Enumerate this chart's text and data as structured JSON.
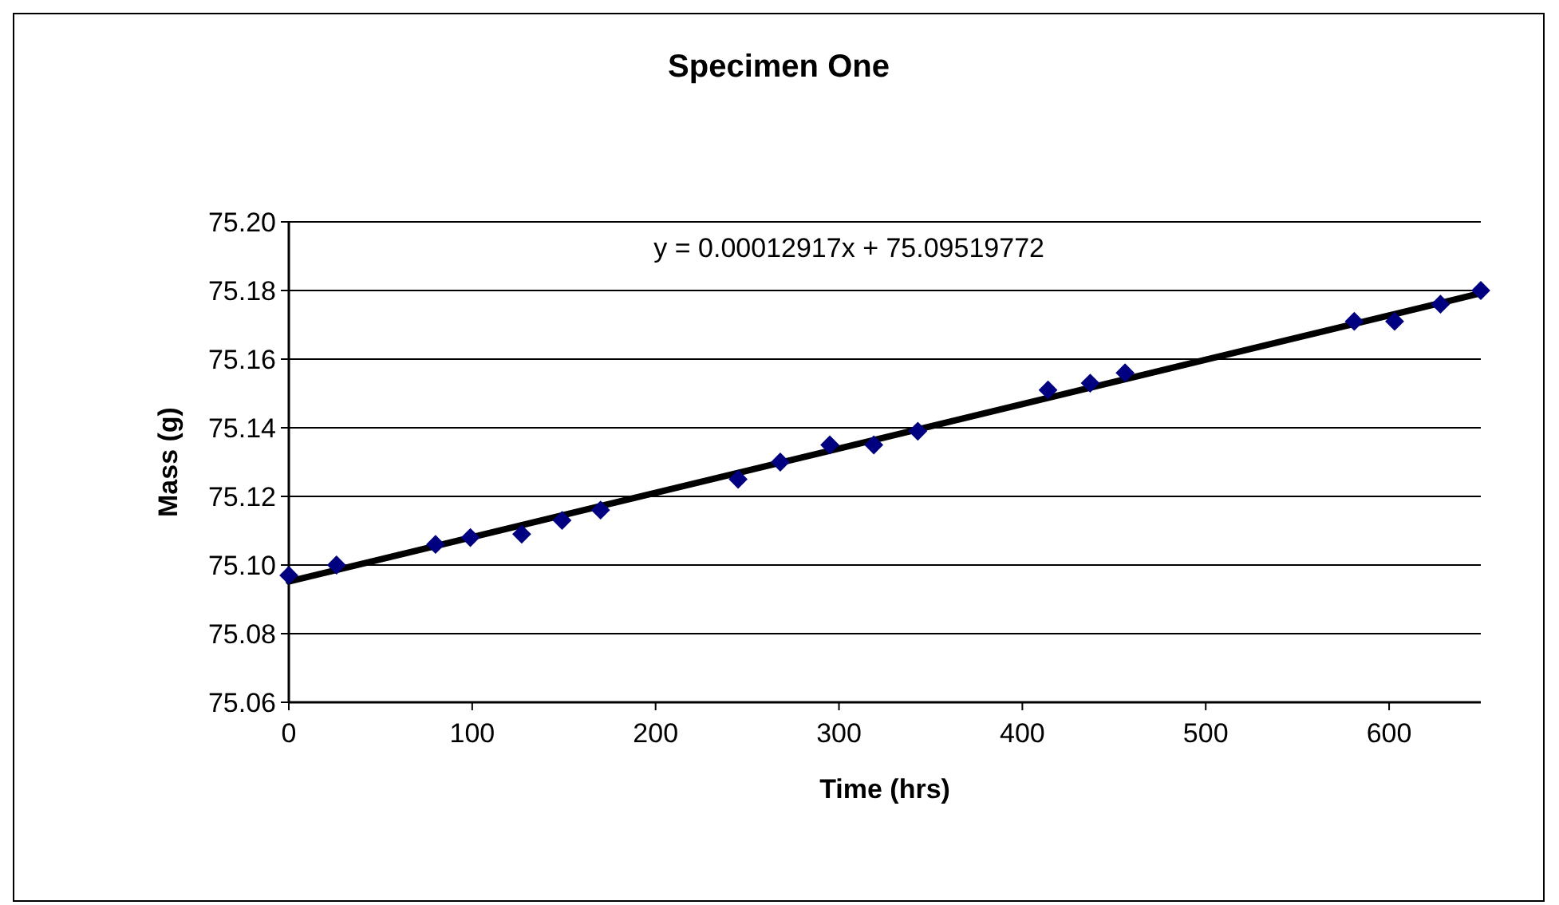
{
  "chart_data": {
    "type": "scatter",
    "title": "Specimen One",
    "xlabel": "Time (hrs)",
    "ylabel": "Mass (g)",
    "xlim": [
      0,
      650
    ],
    "xticks": [
      0,
      100,
      200,
      300,
      400,
      500,
      600
    ],
    "ylim": [
      75.06,
      75.2
    ],
    "yticks": [
      {
        "value": 75.06,
        "label": "75.06"
      },
      {
        "value": 75.08,
        "label": "75.08"
      },
      {
        "value": 75.1,
        "label": "75.10"
      },
      {
        "value": 75.12,
        "label": "75.12"
      },
      {
        "value": 75.14,
        "label": "75.14"
      },
      {
        "value": 75.16,
        "label": "75.16"
      },
      {
        "value": 75.18,
        "label": "75.18"
      },
      {
        "value": 75.2,
        "label": "75.20"
      }
    ],
    "grid": "y",
    "annotations": [
      "y = 0.00012917x + 75.09519772"
    ],
    "series": [
      {
        "marker": "diamond",
        "color": "#000080",
        "x": [
          0,
          26,
          80,
          99,
          127,
          149,
          170,
          245,
          268,
          295,
          319,
          343,
          414,
          437,
          456,
          581,
          603,
          628,
          650
        ],
        "values": [
          75.097,
          75.1,
          75.106,
          75.108,
          75.109,
          75.113,
          75.116,
          75.125,
          75.13,
          75.135,
          75.135,
          75.139,
          75.151,
          75.153,
          75.156,
          75.171,
          75.171,
          75.176,
          75.18
        ]
      },
      {
        "type": "line",
        "color": "#000000",
        "x": [
          0,
          650
        ],
        "values": [
          75.0952,
          75.1792
        ]
      }
    ]
  }
}
